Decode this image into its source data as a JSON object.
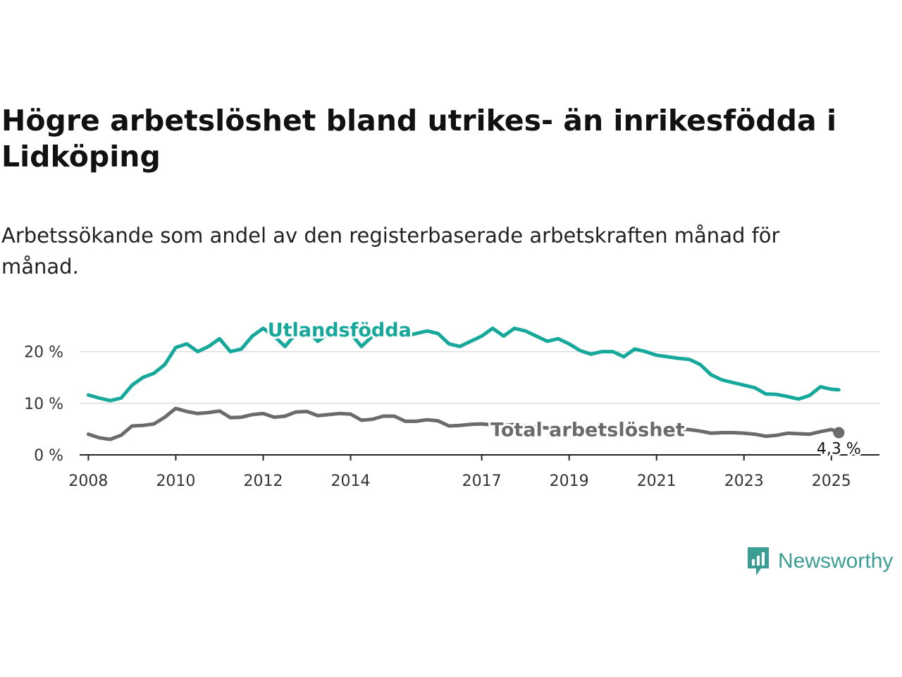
{
  "title": "Högre arbetslöshet bland utrikes- än inrikesfödda i Lidköping",
  "subtitle": "Arbetssökande som andel av den registerbaserade arbetskraften månad för månad.",
  "brand": "Newsworthy",
  "colors": {
    "foreign": "#16a89a",
    "total": "#6b6b6b",
    "brand": "#3a9e92"
  },
  "chart_data": {
    "type": "line",
    "x_unit": "year",
    "xlim": [
      2007.8,
      2026.1
    ],
    "ylim": [
      0,
      28
    ],
    "yticks": [
      {
        "value": 0,
        "label": "0 %"
      },
      {
        "value": 10,
        "label": "10 %"
      },
      {
        "value": 20,
        "label": "20 %"
      }
    ],
    "xticks": [
      {
        "value": 2008,
        "label": "2008"
      },
      {
        "value": 2010,
        "label": "2010"
      },
      {
        "value": 2012,
        "label": "2012"
      },
      {
        "value": 2014,
        "label": "2014"
      },
      {
        "value": 2017,
        "label": "2017"
      },
      {
        "value": 2019,
        "label": "2019"
      },
      {
        "value": 2021,
        "label": "2021"
      },
      {
        "value": 2023,
        "label": "2023"
      },
      {
        "value": 2025,
        "label": "2025"
      }
    ],
    "grid": true,
    "series": [
      {
        "name": "Utlandsfödda",
        "color": "#16a89a",
        "x": [
          2008.0,
          2008.25,
          2008.5,
          2008.75,
          2009.0,
          2009.25,
          2009.5,
          2009.75,
          2010.0,
          2010.25,
          2010.5,
          2010.75,
          2011.0,
          2011.25,
          2011.5,
          2011.75,
          2012.0,
          2012.25,
          2012.5,
          2012.75,
          2013.0,
          2013.25,
          2013.5,
          2013.75,
          2014.0,
          2014.25,
          2014.5,
          2014.75,
          2015.0,
          2015.25,
          2015.5,
          2015.75,
          2016.0,
          2016.25,
          2016.5,
          2016.75,
          2017.0,
          2017.25,
          2017.5,
          2017.75,
          2018.0,
          2018.25,
          2018.5,
          2018.75,
          2019.0,
          2019.25,
          2019.5,
          2019.75,
          2020.0,
          2020.25,
          2020.5,
          2020.75,
          2021.0,
          2021.25,
          2021.5,
          2021.75,
          2022.0,
          2022.25,
          2022.5,
          2022.75,
          2023.0,
          2023.25,
          2023.5,
          2023.75,
          2024.0,
          2024.25,
          2024.5,
          2024.75,
          2025.0,
          2025.17
        ],
        "values": [
          11.6,
          11.0,
          10.5,
          11.0,
          13.5,
          15.0,
          15.8,
          17.5,
          20.8,
          21.5,
          20.0,
          21.0,
          22.5,
          20.0,
          20.5,
          23.0,
          24.5,
          23.0,
          21.0,
          23.5,
          24.0,
          22.0,
          23.5,
          24.0,
          23.5,
          21.0,
          23.0,
          24.0,
          23.5,
          23.0,
          23.5,
          24.0,
          23.5,
          21.5,
          21.0,
          22.0,
          23.0,
          24.5,
          23.0,
          24.5,
          24.0,
          23.0,
          22.0,
          22.5,
          21.5,
          20.2,
          19.5,
          20.0,
          20.0,
          19.0,
          20.5,
          20.0,
          19.3,
          19.0,
          18.7,
          18.5,
          17.5,
          15.5,
          14.5,
          14.0,
          13.5,
          13.0,
          11.8,
          11.7,
          11.3,
          10.8,
          11.5,
          13.2,
          12.7,
          12.6
        ]
      },
      {
        "name": "Total arbetslöshet",
        "color": "#6b6b6b",
        "x": [
          2008.0,
          2008.25,
          2008.5,
          2008.75,
          2009.0,
          2009.25,
          2009.5,
          2009.75,
          2010.0,
          2010.25,
          2010.5,
          2010.75,
          2011.0,
          2011.25,
          2011.5,
          2011.75,
          2012.0,
          2012.25,
          2012.5,
          2012.75,
          2013.0,
          2013.25,
          2013.5,
          2013.75,
          2014.0,
          2014.25,
          2014.5,
          2014.75,
          2015.0,
          2015.25,
          2015.5,
          2015.75,
          2016.0,
          2016.25,
          2016.5,
          2016.75,
          2017.0,
          2017.25,
          2017.5,
          2017.75,
          2018.0,
          2018.25,
          2018.5,
          2018.75,
          2019.0,
          2019.25,
          2019.5,
          2019.75,
          2020.0,
          2020.25,
          2020.5,
          2020.75,
          2021.0,
          2021.25,
          2021.5,
          2021.75,
          2022.0,
          2022.25,
          2022.5,
          2022.75,
          2023.0,
          2023.25,
          2023.5,
          2023.75,
          2024.0,
          2024.25,
          2024.5,
          2024.75,
          2025.0,
          2025.17
        ],
        "values": [
          4.0,
          3.3,
          3.0,
          3.8,
          5.6,
          5.7,
          6.0,
          7.3,
          9.0,
          8.4,
          8.0,
          8.2,
          8.5,
          7.2,
          7.3,
          7.8,
          8.0,
          7.3,
          7.5,
          8.3,
          8.4,
          7.6,
          7.8,
          8.0,
          7.9,
          6.7,
          6.9,
          7.5,
          7.5,
          6.5,
          6.5,
          6.8,
          6.6,
          5.6,
          5.7,
          5.9,
          6.0,
          5.8,
          5.7,
          5.9,
          5.6,
          5.4,
          5.2,
          5.3,
          5.0,
          4.9,
          4.8,
          5.0,
          5.1,
          5.2,
          5.1,
          5.0,
          5.0,
          5.1,
          5.0,
          4.9,
          4.6,
          4.2,
          4.3,
          4.3,
          4.2,
          4.0,
          3.6,
          3.8,
          4.2,
          4.1,
          4.0,
          4.5,
          4.9,
          4.3
        ]
      }
    ],
    "annotations": [
      {
        "text": "4,3 %",
        "x": 2025.17,
        "y": 4.3
      }
    ]
  }
}
